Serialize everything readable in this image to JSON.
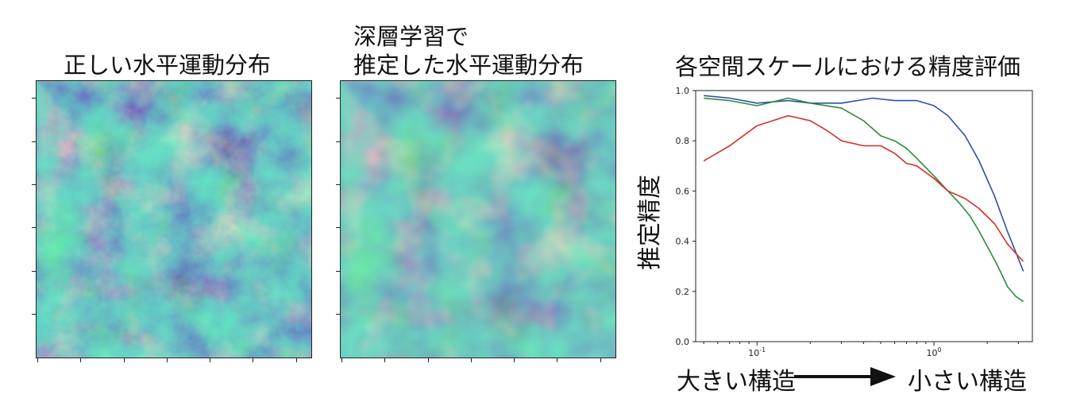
{
  "panels": {
    "true_title": "正しい水平運動分布",
    "pred_title_line1": "深層学習で",
    "pred_title_line2": "推定した水平運動分布"
  },
  "chart_data": {
    "type": "line",
    "title": "各空間スケールにおける精度評価",
    "xlabel_left": "大きい構造",
    "xlabel_right": "小さい構造",
    "ylabel": "推定精度",
    "xscale": "log",
    "xlim": [
      0.045,
      3.6
    ],
    "ylim": [
      0.0,
      1.0
    ],
    "yticks": [
      "0.0",
      "0.2",
      "0.4",
      "0.6",
      "0.8",
      "1.0"
    ],
    "xticks": [
      "10^-1",
      "10^0"
    ],
    "grid": false,
    "series": [
      {
        "color": "#3050a8",
        "x": [
          0.05,
          0.07,
          0.1,
          0.15,
          0.2,
          0.3,
          0.45,
          0.6,
          0.8,
          1.0,
          1.2,
          1.5,
          1.8,
          2.2,
          2.6,
          3.0,
          3.2
        ],
        "y": [
          0.98,
          0.97,
          0.95,
          0.96,
          0.95,
          0.95,
          0.97,
          0.96,
          0.96,
          0.94,
          0.9,
          0.82,
          0.72,
          0.58,
          0.44,
          0.33,
          0.28
        ]
      },
      {
        "color": "#2e8b3e",
        "x": [
          0.05,
          0.07,
          0.1,
          0.15,
          0.2,
          0.3,
          0.4,
          0.5,
          0.6,
          0.7,
          0.8,
          1.0,
          1.2,
          1.4,
          1.6,
          1.8,
          2.0,
          2.3,
          2.6,
          2.9,
          3.2
        ],
        "y": [
          0.97,
          0.96,
          0.94,
          0.97,
          0.95,
          0.93,
          0.88,
          0.82,
          0.8,
          0.77,
          0.73,
          0.66,
          0.6,
          0.55,
          0.5,
          0.44,
          0.38,
          0.3,
          0.22,
          0.18,
          0.16
        ]
      },
      {
        "color": "#d6302a",
        "x": [
          0.05,
          0.07,
          0.1,
          0.15,
          0.2,
          0.25,
          0.3,
          0.4,
          0.5,
          0.6,
          0.7,
          0.8,
          1.0,
          1.2,
          1.5,
          1.8,
          2.2,
          2.6,
          3.0,
          3.2
        ],
        "y": [
          0.72,
          0.78,
          0.86,
          0.9,
          0.88,
          0.84,
          0.8,
          0.78,
          0.78,
          0.75,
          0.71,
          0.7,
          0.65,
          0.6,
          0.57,
          0.53,
          0.47,
          0.39,
          0.34,
          0.32
        ]
      }
    ]
  }
}
